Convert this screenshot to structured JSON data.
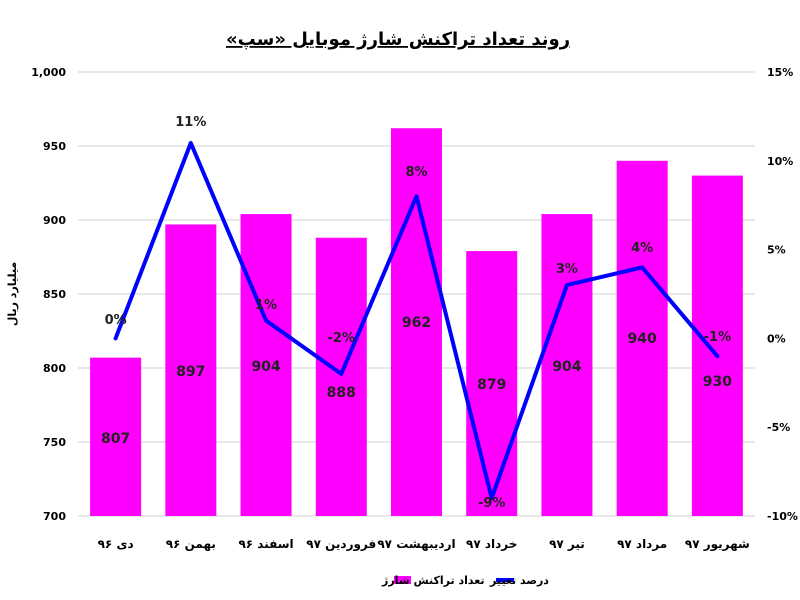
{
  "chart_data": {
    "type": "bar",
    "title": "روند تعداد تراکنش شارژ موبایل «سپ»",
    "ylabel": "میلیارد ریال",
    "categories": [
      "دی ۹۶",
      "بهمن ۹۶",
      "اسفند ۹۶",
      "فروردین ۹۷",
      "اردیبهشت ۹۷",
      "خرداد ۹۷",
      "تیر ۹۷",
      "مرداد ۹۷",
      "شهریور ۹۷"
    ],
    "y_ticks": [
      "700",
      "750",
      "800",
      "850",
      "900",
      "950",
      "1,000"
    ],
    "y2_ticks": [
      "-10%",
      "-5%",
      "0%",
      "5%",
      "10%",
      "15%"
    ],
    "ylim": [
      700,
      1000
    ],
    "y2lim": [
      -10,
      15
    ],
    "grid": true,
    "legend_position": "bottom",
    "series": [
      {
        "name": "تعداد تراکنش شارژ",
        "type": "bar",
        "color": "#ff00ff",
        "values": [
          807,
          897,
          904,
          888,
          962,
          879,
          904,
          940,
          930
        ],
        "labels": [
          "807",
          "897",
          "904",
          "888",
          "962",
          "879",
          "904",
          "940",
          "930"
        ]
      },
      {
        "name": "درصد تغییر",
        "type": "line",
        "axis": "secondary",
        "color": "#0000ff",
        "values": [
          0,
          11,
          1,
          -2,
          8,
          -9,
          3,
          4,
          -1
        ],
        "labels": [
          "0%",
          "11%",
          "1%",
          "-2%",
          "8%",
          "-9%",
          "3%",
          "4%",
          "-1%"
        ]
      }
    ]
  }
}
